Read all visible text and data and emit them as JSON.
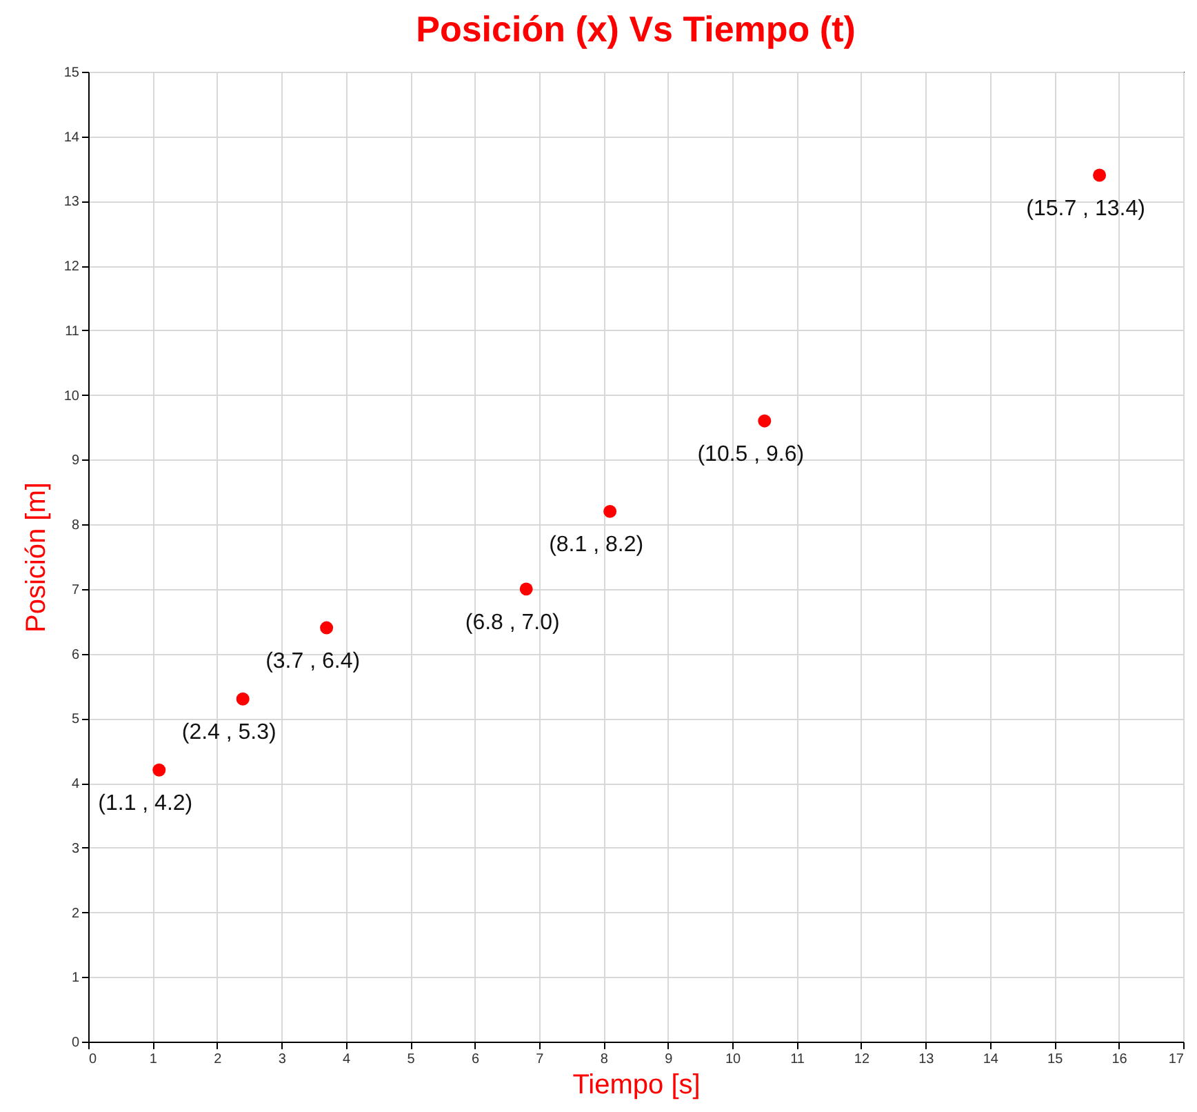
{
  "chart_data": {
    "type": "scatter",
    "title": "Posición (x)   Vs   Tiempo (t)",
    "xlabel": "Tiempo [s]",
    "ylabel": "Posición [m]",
    "x": [
      1.1,
      2.4,
      3.7,
      6.8,
      8.1,
      10.5,
      15.7
    ],
    "series": [
      {
        "color": "#ff0000",
        "values": [
          4.2,
          5.3,
          6.4,
          7.0,
          8.2,
          9.6,
          13.4
        ],
        "value_labels": [
          "(1.1 , 4.2)",
          "(2.4 , 5.3)",
          "(3.7 , 6.4)",
          "(6.8 , 7.0)",
          "(8.1 , 8.2)",
          "(10.5 , 9.6)",
          "(15.7 , 13.4)"
        ]
      }
    ],
    "xlim": [
      0,
      17
    ],
    "xticks": [
      0,
      1,
      2,
      3,
      4,
      5,
      6,
      7,
      8,
      9,
      10,
      11,
      12,
      13,
      14,
      15,
      16,
      17
    ],
    "ylim": [
      0,
      15
    ],
    "yticks": [
      0,
      1,
      2,
      3,
      4,
      5,
      6,
      7,
      8,
      9,
      10,
      11,
      12,
      13,
      14,
      15
    ],
    "grid": true,
    "marker": "circle"
  }
}
